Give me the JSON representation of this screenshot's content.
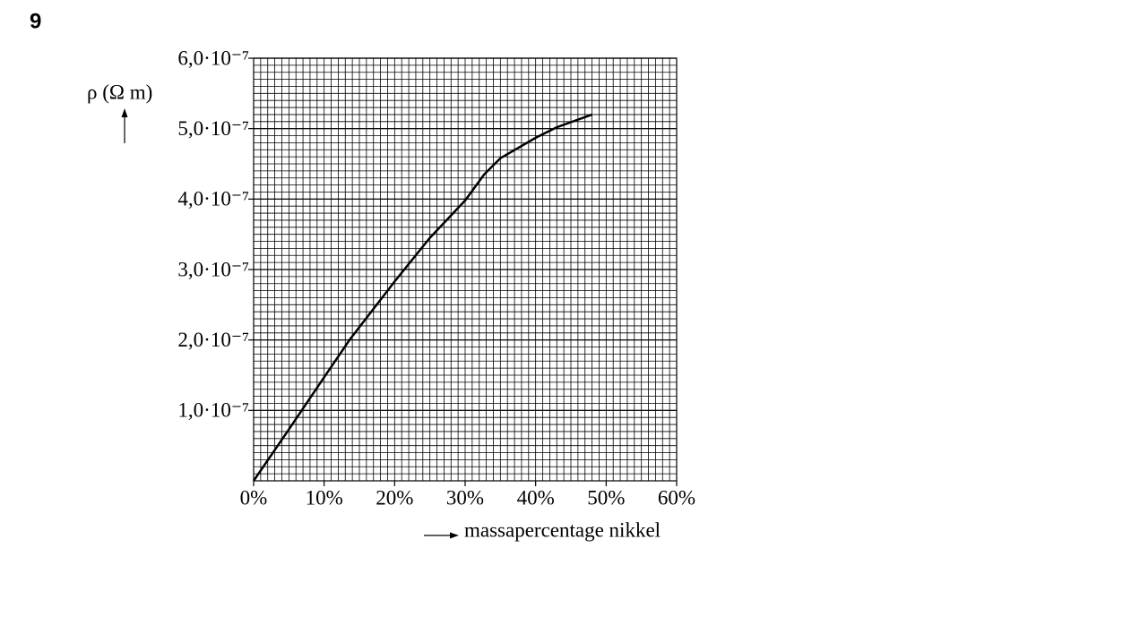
{
  "question_number": "9",
  "chart_data": {
    "type": "line",
    "y_label": "ρ (Ω m)",
    "x_label": "massapercentage nikkel",
    "x": [
      0,
      5,
      10,
      13.6,
      20,
      25,
      30,
      32.7,
      35,
      40,
      43,
      48
    ],
    "series": [
      {
        "name": "ρ",
        "color": "#000000",
        "values": [
          0,
          7.3e-08,
          1.47e-07,
          2e-07,
          2.83e-07,
          3.45e-07,
          3.98e-07,
          4.35e-07,
          4.58e-07,
          4.87e-07,
          5.02e-07,
          5.2e-07
        ]
      }
    ],
    "xlim": [
      0,
      60
    ],
    "xticks": [
      {
        "value": 0,
        "label": "0%"
      },
      {
        "value": 10,
        "label": "10%"
      },
      {
        "value": 20,
        "label": "20%"
      },
      {
        "value": 30,
        "label": "30%"
      },
      {
        "value": 40,
        "label": "40%"
      },
      {
        "value": 50,
        "label": "50%"
      },
      {
        "value": 60,
        "label": "60%"
      }
    ],
    "ylim": [
      0,
      6e-07
    ],
    "yticks": [
      {
        "value": 1e-07,
        "label": "1,0·10⁻⁷"
      },
      {
        "value": 2e-07,
        "label": "2,0·10⁻⁷"
      },
      {
        "value": 3e-07,
        "label": "3,0·10⁻⁷"
      },
      {
        "value": 4e-07,
        "label": "4,0·10⁻⁷"
      },
      {
        "value": 5e-07,
        "label": "5,0·10⁻⁷"
      },
      {
        "value": 6e-07,
        "label": "6,0·10⁻⁷"
      }
    ],
    "grid": true
  }
}
